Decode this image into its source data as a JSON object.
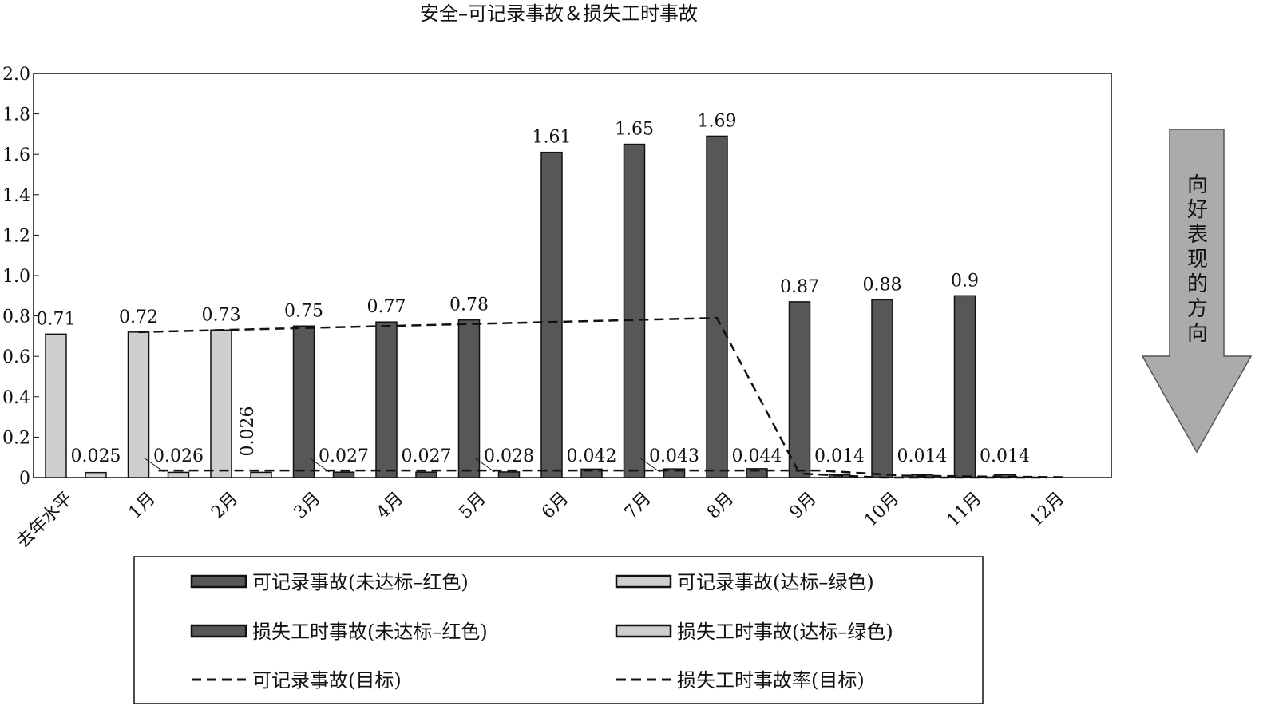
{
  "chart_data": {
    "type": "bar",
    "title": "安全–可记录事故＆损失工时事故",
    "xlabel": "",
    "ylabel": "",
    "ylim": [
      0,
      2.0
    ],
    "yticks": [
      "2.0",
      "1.8",
      "1.6",
      "1.4",
      "1.2",
      "1.0",
      "0.8",
      "0.6",
      "0.4",
      "0.2",
      "0"
    ],
    "categories": [
      "去年水平",
      "1月",
      "2月",
      "3月",
      "4月",
      "5月",
      "6月",
      "7月",
      "8月",
      "9月",
      "10月",
      "11月",
      "12月"
    ],
    "recordable": {
      "values": [
        0.71,
        0.72,
        0.73,
        0.75,
        0.77,
        0.78,
        1.61,
        1.65,
        1.69,
        0.87,
        0.88,
        0.9,
        null
      ],
      "labels": [
        "0.71",
        "0.72",
        "0.73",
        "0.75",
        "0.77",
        "0.78",
        "1.61",
        "1.65",
        "1.69",
        "0.87",
        "0.88",
        "0.9",
        ""
      ],
      "status": [
        "green",
        "green",
        "green",
        "red",
        "red",
        "red",
        "red",
        "red",
        "red",
        "red",
        "red",
        "red",
        ""
      ]
    },
    "lost_time": {
      "values": [
        0.025,
        0.026,
        0.026,
        0.027,
        0.027,
        0.028,
        0.042,
        0.043,
        0.044,
        0.014,
        0.014,
        0.014,
        null
      ],
      "labels": [
        "0.025",
        "0.026",
        "0.026",
        "0.027",
        "0.027",
        "0.028",
        "0.042",
        "0.043",
        "0.044",
        "0.014",
        "0.014",
        "0.014",
        ""
      ],
      "status": [
        "green",
        "green",
        "green",
        "red",
        "red",
        "red",
        "red",
        "red",
        "red",
        "red",
        "red",
        "red",
        ""
      ]
    },
    "recordable_target": [
      null,
      0.72,
      0.73,
      0.74,
      0.75,
      0.76,
      0.77,
      0.78,
      0.79,
      0.02,
      0.0,
      0.0,
      0.0
    ],
    "lost_time_target": [
      null,
      0.035,
      0.035,
      0.035,
      0.035,
      0.035,
      0.035,
      0.035,
      0.035,
      0.035,
      0.01,
      0.005,
      0.002
    ],
    "colors": {
      "red_status": "#575757",
      "green_status": "#cfcfcf",
      "axis": "#111111"
    },
    "legend": {
      "placement": "bottom",
      "items": [
        {
          "label": "可记录事故(未达标–红色)",
          "swatch": "bar-dark"
        },
        {
          "label": "可记录事故(达标–绿色)",
          "swatch": "bar-light"
        },
        {
          "label": "损失工时事故(未达标–红色)",
          "swatch": "bar-dark"
        },
        {
          "label": "损失工时事故(达标–绿色)",
          "swatch": "bar-light"
        },
        {
          "label": "可记录事故(目标)",
          "swatch": "dash"
        },
        {
          "label": "损失工时事故率(目标)",
          "swatch": "dash"
        }
      ]
    },
    "direction_arrow": {
      "text": "向好表现的方向",
      "icon": "down-arrow-icon"
    }
  }
}
